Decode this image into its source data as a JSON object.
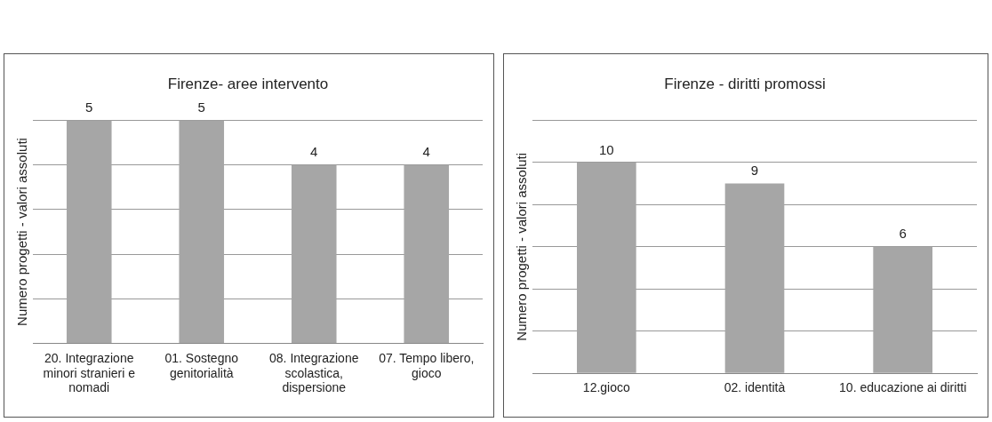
{
  "chart_data": [
    {
      "type": "bar",
      "title": "Firenze- aree intervento",
      "ylabel": "Numero progetti - valori assoluti",
      "categories": [
        "20. Integrazione minori stranieri e nomadi",
        "01. Sostegno genitorialità",
        "08. Integrazione scolastica, dispersione",
        "07. Tempo libero, gioco"
      ],
      "values": [
        5,
        5,
        4,
        4
      ],
      "color": "#a6a6a6",
      "ylim": [
        0,
        5
      ],
      "yticks": [
        {
          "value": 0,
          "label": null
        },
        {
          "value": 1,
          "label": null
        },
        {
          "value": 2,
          "label": null
        },
        {
          "value": 3,
          "label": null
        },
        {
          "value": 4,
          "label": null
        },
        {
          "value": 5,
          "label": null
        }
      ],
      "grid": "y",
      "tick_labels": "x",
      "data_labels": true
    },
    {
      "type": "bar",
      "title": "Firenze - diritti promossi",
      "ylabel": "Numero progetti - valori assoluti",
      "categories": [
        "12.gioco",
        "02. identità",
        "10. educazione ai diritti"
      ],
      "values": [
        10,
        9,
        6
      ],
      "color": "#a6a6a6",
      "ylim": [
        0,
        12
      ],
      "yticks": [
        {
          "value": 0,
          "label": null
        },
        {
          "value": 2,
          "label": null
        },
        {
          "value": 4,
          "label": null
        },
        {
          "value": 6,
          "label": null
        },
        {
          "value": 8,
          "label": null
        },
        {
          "value": 10,
          "label": null
        },
        {
          "value": 12,
          "label": null
        }
      ],
      "grid": "y",
      "tick_labels": "x",
      "data_labels": true
    }
  ]
}
